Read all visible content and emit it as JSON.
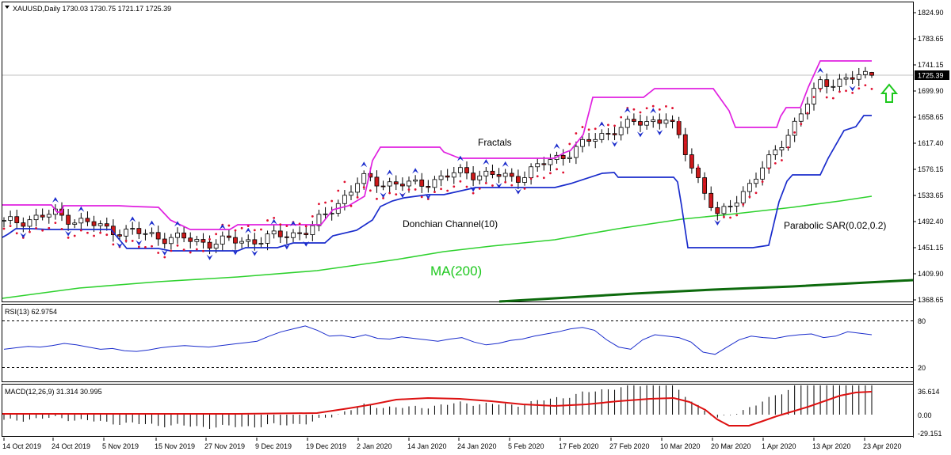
{
  "header": {
    "main": "XAUUSD,Daily  1730.03 1730.75 1721.17 1725.39",
    "rsi": "RSI(13) 62.9754",
    "macd": "MACD(12,26,9) 31.314 30.995"
  },
  "annotations": {
    "fractals": "Fractals",
    "donchian": "Donchian Channel(10)",
    "ma": "MA(200)",
    "psar": "Parabolic SAR(0.02,0.2)"
  },
  "price_axis": {
    "labels": [
      "1824.90",
      "1783.65",
      "1741.15",
      "1699.90",
      "1658.65",
      "1617.40",
      "1576.15",
      "1533.65",
      "1492.40",
      "1451.15",
      "1409.90",
      "1368.65"
    ],
    "current": "1725.39"
  },
  "rsi_axis": {
    "labels": [
      "80",
      "20"
    ]
  },
  "macd_axis": {
    "labels": [
      "36.614",
      "0.00",
      "-29.151"
    ]
  },
  "time_axis": {
    "labels": [
      "14 Oct 2019",
      "24 Oct 2019",
      "5 Nov 2019",
      "15 Nov 2019",
      "27 Nov 2019",
      "9 Dec 2019",
      "19 Dec 2019",
      "2 Jan 2020",
      "14 Jan 2020",
      "24 Jan 2020",
      "5 Feb 2020",
      "17 Feb 2020",
      "27 Feb 2020",
      "10 Mar 2020",
      "20 Mar 2020",
      "1 Apr 2020",
      "13 Apr 2020",
      "23 Apr 2020"
    ]
  },
  "colors": {
    "bull": "#ffffff",
    "bear": "#cc1a1a",
    "donchian_upper": "#e020e0",
    "donchian_lower": "#1a2ccc",
    "ma200": "#2ed12e",
    "ma_long": "#0d6a0d",
    "psar": "#e01030",
    "rsi": "#1a2ccc",
    "macd_signal": "#dd1111",
    "hist": "#000000",
    "arrow": "#1ec81e"
  },
  "chart_data": [
    {
      "type": "candlestick",
      "title": "XAUUSD,Daily",
      "ylim": [
        1368.65,
        1824.9
      ],
      "key_points": [
        {
          "date": "14 Oct 2019",
          "close": 1490
        },
        {
          "date": "24 Oct 2019",
          "close": 1505
        },
        {
          "date": "5 Nov 2019",
          "close": 1482
        },
        {
          "date": "15 Nov 2019",
          "close": 1470
        },
        {
          "date": "27 Nov 2019",
          "close": 1460
        },
        {
          "date": "9 Dec 2019",
          "close": 1464
        },
        {
          "date": "19 Dec 2019",
          "close": 1480
        },
        {
          "date": "2 Jan 2020",
          "close": 1560
        },
        {
          "date": "14 Jan 2020",
          "close": 1550
        },
        {
          "date": "24 Jan 2020",
          "close": 1572
        },
        {
          "date": "5 Feb 2020",
          "close": 1562
        },
        {
          "date": "17 Feb 2020",
          "close": 1601
        },
        {
          "date": "27 Feb 2020",
          "close": 1642
        },
        {
          "date": "10 Mar 2020",
          "close": 1659
        },
        {
          "date": "20 Mar 2020",
          "close": 1497
        },
        {
          "date": "1 Apr 2020",
          "close": 1590
        },
        {
          "date": "13 Apr 2020",
          "close": 1713
        },
        {
          "date": "23 Apr 2020",
          "close": 1725.39
        }
      ],
      "last_bar": {
        "open": 1730.03,
        "high": 1730.75,
        "low": 1721.17,
        "close": 1725.39
      },
      "indicators": [
        "Donchian Channel(10)",
        "MA(200)",
        "Parabolic SAR(0.02,0.2)",
        "Fractals"
      ]
    },
    {
      "type": "line",
      "name": "RSI(13)",
      "ylim": [
        0,
        100
      ],
      "levels": [
        80,
        20
      ],
      "last": 62.9754,
      "values": [
        42,
        44,
        46,
        45,
        47,
        50,
        48,
        45,
        42,
        43,
        40,
        39,
        41,
        44,
        46,
        47,
        46,
        45,
        47,
        49,
        51,
        53,
        60,
        66,
        70,
        74,
        68,
        60,
        61,
        58,
        62,
        57,
        56,
        59,
        57,
        55,
        53,
        56,
        58,
        52,
        48,
        50,
        54,
        56,
        60,
        63,
        66,
        70,
        72,
        68,
        55,
        45,
        42,
        55,
        62,
        60,
        58,
        52,
        38,
        35,
        45,
        55,
        60,
        58,
        57,
        60,
        62,
        63,
        58,
        60,
        66,
        64,
        62
      ]
    },
    {
      "type": "bar",
      "name": "MACD(12,26,9)",
      "ylim": [
        -29.151,
        36.614
      ],
      "last": [
        31.314,
        30.995
      ]
    }
  ]
}
